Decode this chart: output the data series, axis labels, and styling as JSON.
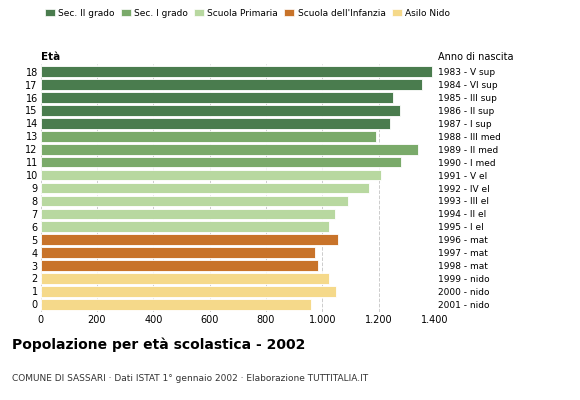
{
  "ages": [
    18,
    17,
    16,
    15,
    14,
    13,
    12,
    11,
    10,
    9,
    8,
    7,
    6,
    5,
    4,
    3,
    2,
    1,
    0
  ],
  "values": [
    1390,
    1355,
    1250,
    1275,
    1240,
    1190,
    1340,
    1280,
    1210,
    1165,
    1090,
    1045,
    1025,
    1055,
    975,
    985,
    1025,
    1050,
    960
  ],
  "anno_nascita": [
    "1983 - V sup",
    "1984 - VI sup",
    "1985 - III sup",
    "1986 - II sup",
    "1987 - I sup",
    "1988 - III med",
    "1989 - II med",
    "1990 - I med",
    "1991 - V el",
    "1992 - IV el",
    "1993 - III el",
    "1994 - II el",
    "1995 - I el",
    "1996 - mat",
    "1997 - mat",
    "1998 - mat",
    "1999 - nido",
    "2000 - nido",
    "2001 - nido"
  ],
  "colors": [
    "#4a7c4e",
    "#4a7c4e",
    "#4a7c4e",
    "#4a7c4e",
    "#4a7c4e",
    "#7aaa6a",
    "#7aaa6a",
    "#7aaa6a",
    "#b8d8a0",
    "#b8d8a0",
    "#b8d8a0",
    "#b8d8a0",
    "#b8d8a0",
    "#c8732a",
    "#c8732a",
    "#c8732a",
    "#f5d98a",
    "#f5d98a",
    "#f5d98a"
  ],
  "legend_labels": [
    "Sec. II grado",
    "Sec. I grado",
    "Scuola Primaria",
    "Scuola dell'Infanzia",
    "Asilo Nido"
  ],
  "legend_colors": [
    "#4a7c4e",
    "#7aaa6a",
    "#b8d8a0",
    "#c8732a",
    "#f5d98a"
  ],
  "title": "Popolazione per età scolastica - 2002",
  "subtitle": "COMUNE DI SASSARI · Dati ISTAT 1° gennaio 2002 · Elaborazione TUTTITALIA.IT",
  "eta_label": "Età",
  "anno_label": "Anno di nascita",
  "xlim": [
    0,
    1400
  ],
  "xticks": [
    0,
    200,
    400,
    600,
    800,
    1000,
    1200,
    1400
  ],
  "xtick_labels": [
    "0",
    "200",
    "400",
    "600",
    "800",
    "1.000",
    "1.200",
    "1.400"
  ],
  "bar_height": 0.82,
  "grid_color": "#cccccc",
  "bg_color": "#ffffff"
}
